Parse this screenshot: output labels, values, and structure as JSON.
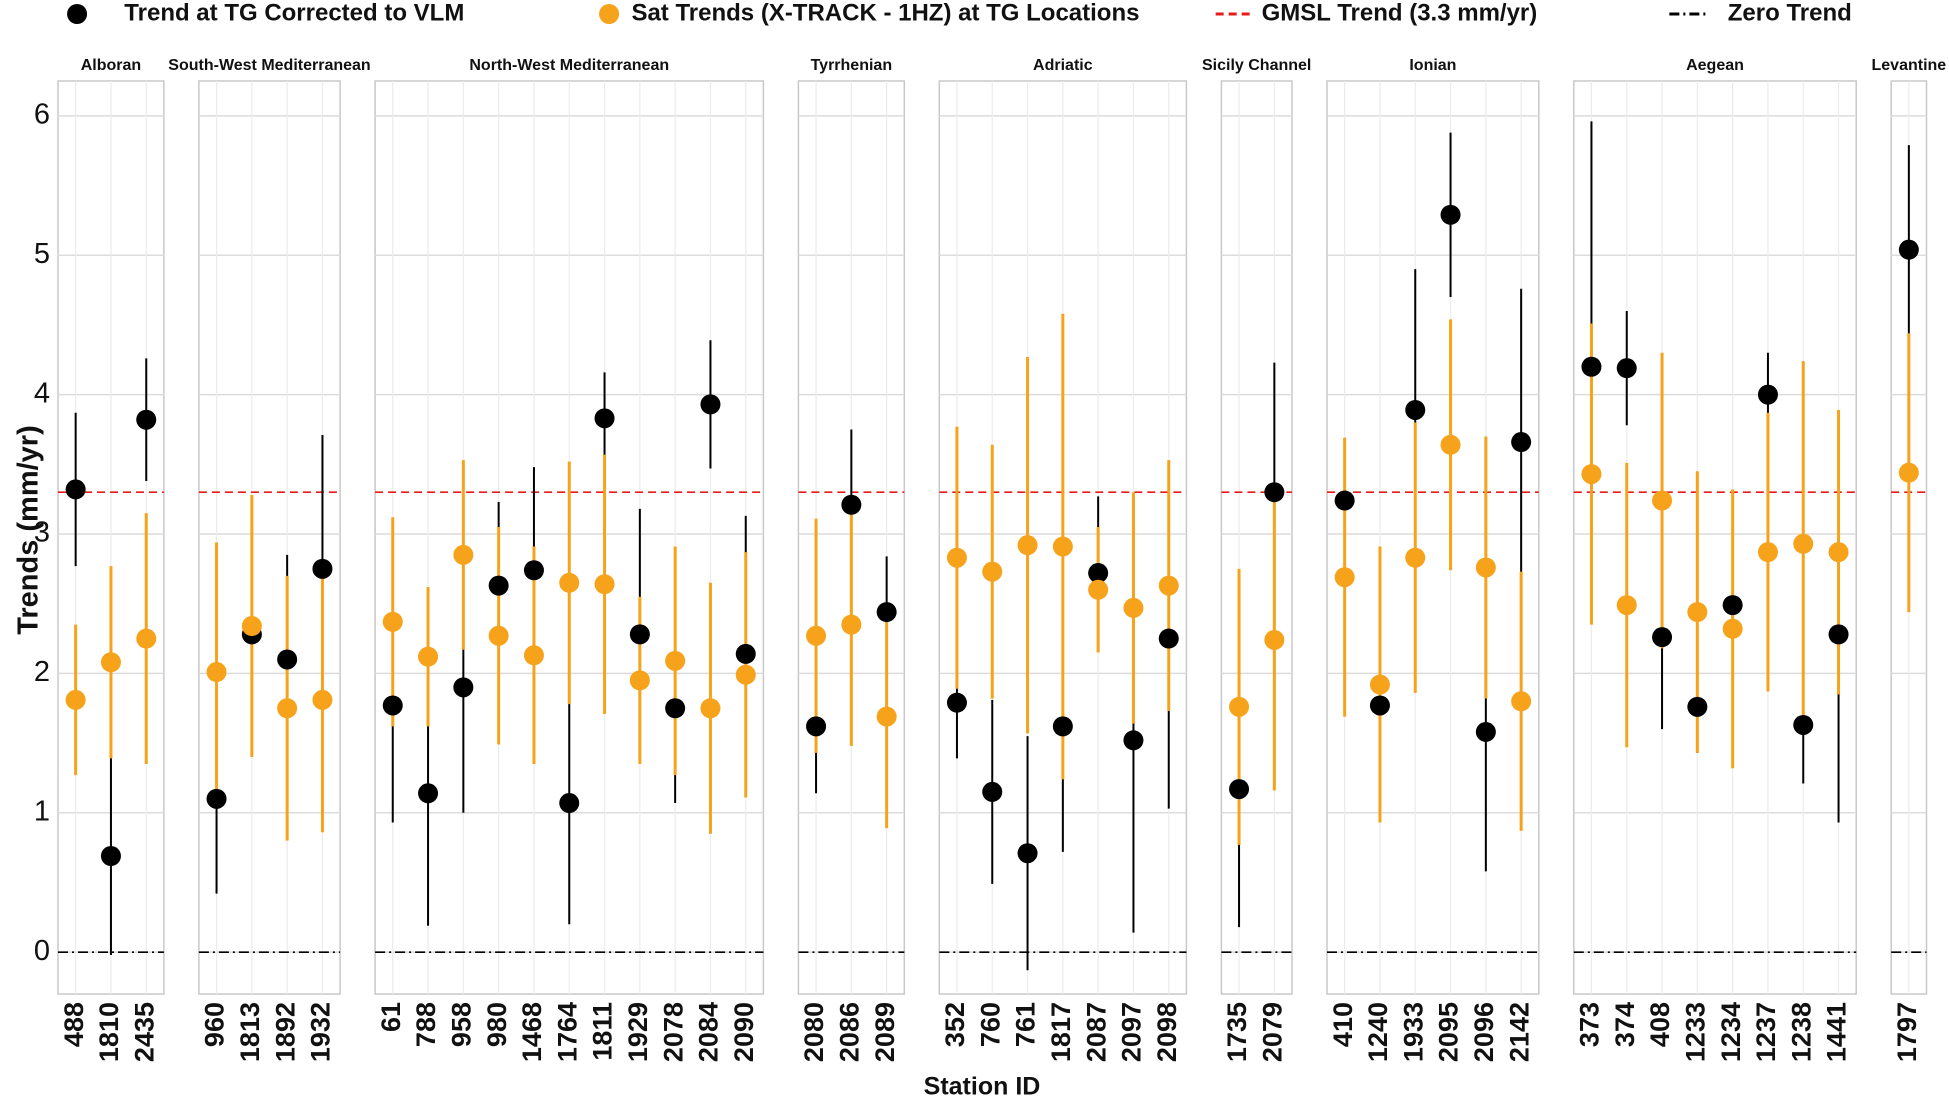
{
  "chart_data": {
    "type": "pointrange",
    "x_label": "Station ID",
    "y_label": "Trends (mm/yr)",
    "ylim": [
      -0.3,
      6.25
    ],
    "yticks": [
      0,
      1,
      2,
      3,
      4,
      5,
      6
    ],
    "grid": true,
    "series": [
      {
        "name": "Trend at TG Corrected to VLM",
        "color": "#000000"
      },
      {
        "name": "Sat Trends (X-TRACK - 1HZ) at TG Locations",
        "color": "#f7a21b"
      }
    ],
    "reference_lines": [
      {
        "name": "GMSL Trend (3.3 mm/yr)",
        "value": 3.3,
        "color": "#e8191b",
        "dash": "8 5"
      },
      {
        "name": "Zero Trend",
        "value": 0,
        "color": "#000000",
        "dash": "10 4 2 4"
      }
    ],
    "facets": [
      {
        "title": "Alboran",
        "categories": [
          "488",
          "1810",
          "2435"
        ],
        "series": [
          {
            "values": [
              3.32,
              0.69,
              3.82
            ],
            "errors": [
              0.55,
              0.71,
              0.44
            ]
          },
          {
            "values": [
              1.81,
              2.08,
              2.25
            ],
            "errors": [
              0.54,
              0.69,
              0.9
            ]
          }
        ]
      },
      {
        "title": "South-West Mediterranean",
        "categories": [
          "960",
          "1813",
          "1892",
          "1932"
        ],
        "series": [
          {
            "values": [
              1.1,
              2.28,
              2.1,
              2.75
            ],
            "errors": [
              0.68,
              0.57,
              0.75,
              0.96
            ]
          },
          {
            "values": [
              2.01,
              2.34,
              1.75,
              1.81
            ],
            "errors": [
              0.93,
              0.94,
              0.95,
              0.95
            ]
          }
        ]
      },
      {
        "title": "North-West Mediterranean",
        "categories": [
          "61",
          "788",
          "958",
          "980",
          "1468",
          "1764",
          "1811",
          "1929",
          "2078",
          "2084",
          "2090"
        ],
        "series": [
          {
            "values": [
              1.77,
              1.14,
              1.9,
              2.63,
              2.74,
              1.07,
              3.83,
              2.28,
              1.75,
              3.93,
              2.14
            ],
            "errors": [
              0.84,
              0.95,
              0.9,
              0.6,
              0.74,
              0.87,
              0.33,
              0.9,
              0.68,
              0.46,
              0.99
            ]
          },
          {
            "values": [
              2.37,
              2.12,
              2.85,
              2.27,
              2.13,
              2.65,
              2.64,
              1.95,
              2.09,
              1.75,
              1.99
            ],
            "errors": [
              0.75,
              0.5,
              0.68,
              0.78,
              0.78,
              0.87,
              0.93,
              0.6,
              0.82,
              0.9,
              0.88
            ]
          }
        ]
      },
      {
        "title": "Tyrrhenian",
        "categories": [
          "2080",
          "2086",
          "2089"
        ],
        "series": [
          {
            "values": [
              1.62,
              3.21,
              2.44
            ],
            "errors": [
              0.48,
              0.54,
              0.4
            ]
          },
          {
            "values": [
              2.27,
              2.35,
              1.69
            ],
            "errors": [
              0.84,
              0.87,
              0.8
            ]
          }
        ]
      },
      {
        "title": "Adriatic",
        "categories": [
          "352",
          "760",
          "761",
          "1817",
          "2087",
          "2097",
          "2098"
        ],
        "series": [
          {
            "values": [
              1.79,
              1.15,
              0.71,
              1.62,
              2.72,
              1.52,
              2.25
            ],
            "errors": [
              0.4,
              0.66,
              0.84,
              0.9,
              0.55,
              1.38,
              1.22
            ]
          },
          {
            "values": [
              2.83,
              2.73,
              2.92,
              2.91,
              2.6,
              2.47,
              2.63
            ],
            "errors": [
              0.94,
              0.91,
              1.35,
              1.67,
              0.45,
              0.83,
              0.9
            ]
          }
        ]
      },
      {
        "title": "Sicily Channel",
        "categories": [
          "1735",
          "2079"
        ],
        "series": [
          {
            "values": [
              1.17,
              3.3
            ],
            "errors": [
              0.99,
              0.93
            ]
          },
          {
            "values": [
              1.76,
              2.24
            ],
            "errors": [
              0.99,
              1.08
            ]
          }
        ]
      },
      {
        "title": "Ionian",
        "categories": [
          "410",
          "1240",
          "1933",
          "2095",
          "2096",
          "2142"
        ],
        "series": [
          {
            "values": [
              3.24,
              1.77,
              3.89,
              5.29,
              1.58,
              3.66
            ],
            "errors": [
              0.45,
              0.7,
              1.01,
              0.59,
              1.0,
              1.1
            ]
          },
          {
            "values": [
              2.69,
              1.92,
              2.83,
              3.64,
              2.76,
              1.8
            ],
            "errors": [
              1.0,
              0.99,
              0.97,
              0.9,
              0.94,
              0.93
            ]
          }
        ]
      },
      {
        "title": "Aegean",
        "categories": [
          "373",
          "374",
          "408",
          "1233",
          "1234",
          "1237",
          "1238",
          "1441"
        ],
        "series": [
          {
            "values": [
              4.2,
              4.19,
              2.26,
              1.76,
              2.49,
              4.0,
              1.63,
              2.28
            ],
            "errors": [
              1.76,
              0.41,
              0.66,
              0.33,
              0.5,
              0.3,
              0.42,
              1.35
            ]
          },
          {
            "values": [
              3.43,
              2.49,
              3.24,
              2.44,
              2.32,
              2.87,
              2.93,
              2.87
            ],
            "errors": [
              1.08,
              1.02,
              1.06,
              1.01,
              1.0,
              1.0,
              1.31,
              1.02
            ]
          }
        ]
      },
      {
        "title": "Levantine",
        "categories": [
          "1797"
        ],
        "series": [
          {
            "values": [
              5.04
            ],
            "errors": [
              0.75
            ]
          },
          {
            "values": [
              3.44
            ],
            "errors": [
              1.0
            ]
          }
        ]
      }
    ]
  }
}
